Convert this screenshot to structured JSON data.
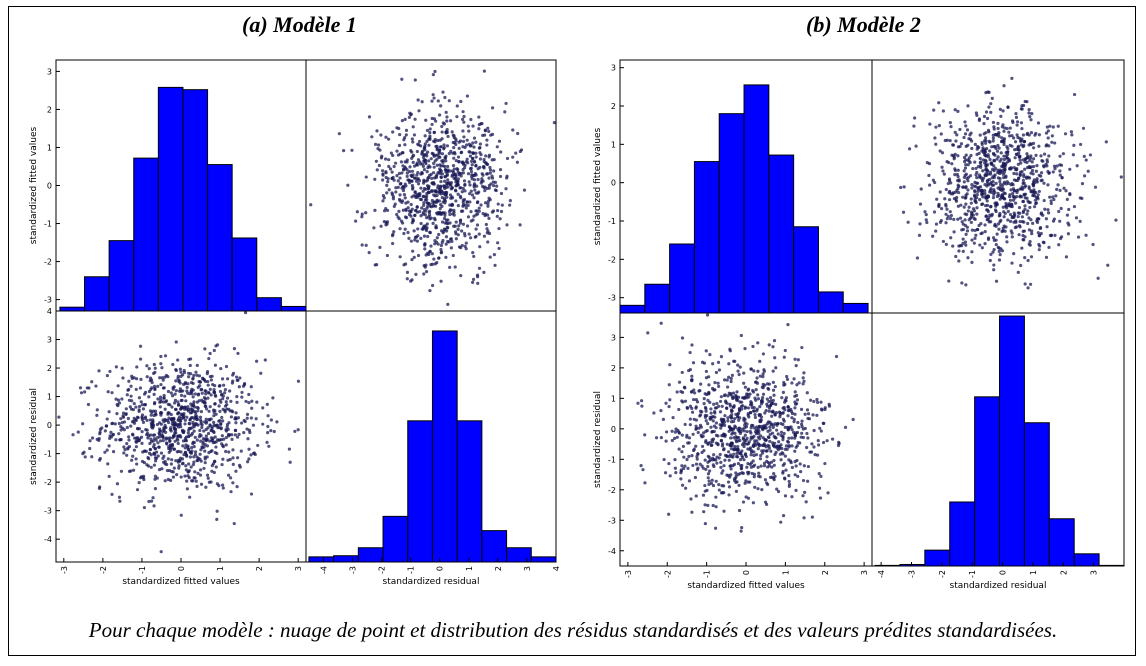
{
  "caption": "Pour chaque modèle : nuage de point et distribution des résidus standardisés et des valeurs prédites standardisées.",
  "colors": {
    "bar_fill": "#0000ff",
    "point_color": "#1a1a55"
  },
  "chart_data": [
    {
      "type": "scatter_matrix",
      "title": "(a)  Modèle 1",
      "variables": [
        "standardized fitted values",
        "standardized residual"
      ],
      "fitted_hist": {
        "xlim": [
          -3.2,
          3.2
        ],
        "bin_edges": [
          -3.1,
          -2.47,
          -1.84,
          -1.21,
          -0.58,
          0.05,
          0.68,
          1.31,
          1.94,
          2.57,
          3.2
        ],
        "heights": [
          -3.2,
          -2.4,
          -1.45,
          0.72,
          2.58,
          2.52,
          0.55,
          -1.38,
          -2.95,
          -3.18
        ]
      },
      "residual_hist": {
        "xlim": [
          -4.6,
          4.0
        ],
        "bin_edges": [
          -4.5,
          -3.65,
          -2.8,
          -1.95,
          -1.1,
          -0.25,
          0.6,
          1.45,
          2.3,
          3.15,
          4.0
        ],
        "heights": [
          -4.62,
          -4.58,
          -4.3,
          -3.2,
          0.15,
          3.3,
          0.15,
          -3.7,
          -4.3,
          -4.62
        ]
      },
      "fitted_ticks": [
        "-3",
        "-2",
        "-1",
        "0",
        "1",
        "2",
        "3"
      ],
      "residual_ticks": [
        "-4",
        "-3",
        "-2",
        "-1",
        "0",
        "1",
        "2",
        "3",
        "4"
      ],
      "fitted_ylim": [
        -3.3,
        3.3
      ],
      "residual_ylim": [
        -4.8,
        4.0
      ],
      "n_points": 1000
    },
    {
      "type": "scatter_matrix",
      "title": "(b)  Modèle 2",
      "variables": [
        "standardized fitted values",
        "standardized residual"
      ],
      "fitted_hist": {
        "xlim": [
          -3.2,
          3.2
        ],
        "bin_edges": [
          -3.2,
          -2.57,
          -1.94,
          -1.31,
          -0.68,
          -0.05,
          0.58,
          1.21,
          1.84,
          2.47,
          3.1
        ],
        "heights": [
          -3.2,
          -2.65,
          -1.6,
          0.55,
          1.8,
          2.55,
          0.72,
          -1.15,
          -2.85,
          -3.15
        ]
      },
      "residual_hist": {
        "xlim": [
          -4.3,
          4.0
        ],
        "bin_edges": [
          -4.2,
          -3.38,
          -2.56,
          -1.74,
          -0.92,
          -0.1,
          0.72,
          1.54,
          2.36,
          3.18,
          4.0
        ],
        "heights": [
          -4.48,
          -4.45,
          -3.98,
          -2.4,
          1.05,
          3.7,
          0.2,
          -2.95,
          -4.1,
          -4.48
        ]
      },
      "fitted_ticks": [
        "-3",
        "-2",
        "-1",
        "0",
        "1",
        "2",
        "3"
      ],
      "residual_ticks": [
        "-4",
        "-3",
        "-2",
        "-1",
        "0",
        "1",
        "2",
        "3"
      ],
      "fitted_ylim": [
        -3.4,
        3.2
      ],
      "residual_ylim": [
        -4.5,
        3.8
      ],
      "n_points": 1000
    }
  ]
}
